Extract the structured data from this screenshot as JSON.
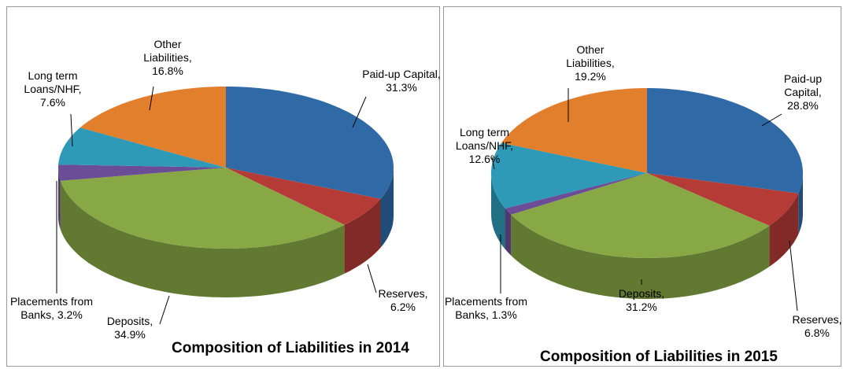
{
  "chart_data": [
    {
      "type": "pie3d",
      "title": "Composition of Liabilities in 2014",
      "values": [
        31.3,
        6.2,
        34.9,
        3.2,
        7.6,
        16.8
      ],
      "value_labels": [
        "Paid-up Capital, 31.3%",
        "Reserves, 6.2%",
        "Deposits, 34.9%",
        "Placements from Banks, 3.2%",
        "Long term Loans/NHF, 7.6%",
        "Other Liabilities, 16.8%"
      ],
      "colors": [
        "#2f6aa6",
        "#b53b37",
        "#88a846",
        "#6b4d95",
        "#2e9ab8",
        "#e17f2d"
      ]
    },
    {
      "type": "pie3d",
      "title": "Composition of Liabilities in 2015",
      "values": [
        28.8,
        6.8,
        31.2,
        1.3,
        12.6,
        19.2
      ],
      "value_labels": [
        "Paid-up Capital, 28.8%",
        "Reserves, 6.8%",
        "Deposits, 31.2%",
        "Placements from Banks, 1.3%",
        "Long term Loans/NHF, 12.6%",
        "Other Liabilities, 19.2%"
      ],
      "colors": [
        "#2f6aa6",
        "#b53b37",
        "#88a846",
        "#6b4d95",
        "#2e9ab8",
        "#e17f2d"
      ]
    }
  ]
}
